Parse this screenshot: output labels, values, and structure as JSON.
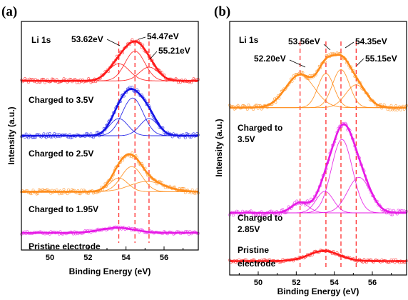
{
  "chart_data": [
    {
      "type": "line",
      "panel": "(a)",
      "element": "Li 1s",
      "xlabel": "Binding Energy (eV)",
      "ylabel": "Intensity (a.u.)",
      "xlim": [
        48.5,
        57.8
      ],
      "xticks": [
        50,
        52,
        54,
        56
      ],
      "ref_lines_eV": [
        53.62,
        54.47,
        55.21
      ],
      "peak_labels": [
        "53.62eV",
        "54.47eV",
        "55.21eV"
      ],
      "series": [
        {
          "name": "Charged to 3.5V",
          "color": "#ff1a1a",
          "baseline_frac": 0.74,
          "noise": 0.01,
          "components": [
            {
              "center": 53.62,
              "sigma": 0.55,
              "height": 0.075
            },
            {
              "center": 54.47,
              "sigma": 0.52,
              "height": 0.13
            },
            {
              "center": 55.21,
              "sigma": 0.5,
              "height": 0.06
            }
          ]
        },
        {
          "name": "Charged to 2.5V",
          "color": "#1414e6",
          "baseline_frac": 0.5,
          "noise": 0.01,
          "components": [
            {
              "center": 53.62,
              "sigma": 0.48,
              "height": 0.075
            },
            {
              "center": 54.35,
              "sigma": 0.55,
              "height": 0.165
            },
            {
              "center": 55.21,
              "sigma": 0.48,
              "height": 0.075
            }
          ]
        },
        {
          "name": "Charged to 1.95V",
          "color": "#ff8c1a",
          "baseline_frac": 0.255,
          "noise": 0.01,
          "components": [
            {
              "center": 53.62,
              "sigma": 0.48,
              "height": 0.06
            },
            {
              "center": 54.3,
              "sigma": 0.55,
              "height": 0.11
            },
            {
              "center": 55.1,
              "sigma": 0.9,
              "height": 0.045
            }
          ]
        },
        {
          "name": "Pristine electrode",
          "color": "#e619e6",
          "baseline_frac": 0.075,
          "noise": 0.006,
          "components": [
            {
              "center": 53.55,
              "sigma": 0.9,
              "height": 0.022
            }
          ]
        }
      ]
    },
    {
      "type": "line",
      "panel": "(b)",
      "element": "Li 1s",
      "xlabel": "Binding Energy (eV)",
      "ylabel": "Intensity (a.u.)",
      "xlim": [
        48.5,
        57.8
      ],
      "xticks": [
        50,
        52,
        54,
        56
      ],
      "ref_lines_eV": [
        52.2,
        53.56,
        54.35,
        55.15
      ],
      "peak_labels": [
        "52.20eV",
        "53.56eV",
        "54.35eV",
        "55.15eV"
      ],
      "series": [
        {
          "name": "Charged to 3.5V",
          "color": "#ff8c1a",
          "baseline_frac": 0.66,
          "noise": 0.01,
          "components": [
            {
              "center": 52.2,
              "sigma": 0.75,
              "height": 0.13
            },
            {
              "center": 53.56,
              "sigma": 0.42,
              "height": 0.135
            },
            {
              "center": 54.35,
              "sigma": 0.45,
              "height": 0.15
            },
            {
              "center": 55.15,
              "sigma": 0.55,
              "height": 0.09
            }
          ]
        },
        {
          "name": "Charged to 2.85V",
          "color": "#e619e6",
          "baseline_frac": 0.245,
          "noise": 0.01,
          "components": [
            {
              "center": 52.2,
              "sigma": 0.45,
              "height": 0.04
            },
            {
              "center": 53.5,
              "sigma": 0.45,
              "height": 0.085
            },
            {
              "center": 54.4,
              "sigma": 0.55,
              "height": 0.29
            },
            {
              "center": 55.3,
              "sigma": 0.6,
              "height": 0.14
            }
          ]
        },
        {
          "name": "Pristine electrode",
          "color": "#ff1a1a",
          "baseline_frac": 0.055,
          "noise": 0.006,
          "components": [
            {
              "center": 53.45,
              "sigma": 0.8,
              "height": 0.04
            }
          ]
        }
      ]
    }
  ],
  "labels": {
    "a": {
      "panel": "(a)",
      "element": "Li 1s",
      "peaks": [
        "53.62eV",
        "54.47eV",
        "55.21eV"
      ],
      "series": [
        "Charged to 3.5V",
        "Charged to 2.5V",
        "Charged to 1.95V",
        "Pristine electrode"
      ],
      "ylabel": "Intensity (a.u.)",
      "xlabel": "Binding Energy (eV)"
    },
    "b": {
      "panel": "(b)",
      "element": "Li 1s",
      "peaks": [
        "52.20eV",
        "53.56eV",
        "54.35eV",
        "55.15eV"
      ],
      "series_lines": [
        [
          "Charged to",
          "3.5V"
        ],
        [
          "Charged to",
          "2.85V"
        ],
        [
          "Pristine",
          "electrode"
        ]
      ],
      "ylabel": "Intensity (a.u.)",
      "xlabel": "Binding Energy (eV)"
    }
  }
}
